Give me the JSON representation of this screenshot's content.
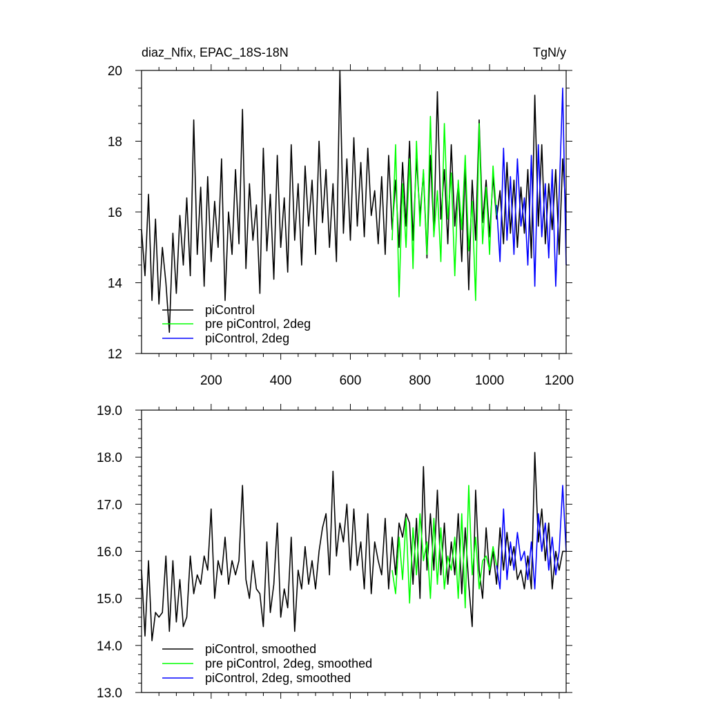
{
  "chart_data": [
    {
      "type": "line",
      "title": "diaz_Nfix, EPAC_18S-18N",
      "units_label": "TgN/y",
      "xlim": [
        0,
        1220
      ],
      "ylim": [
        12,
        20
      ],
      "x_ticks": [
        200,
        400,
        600,
        800,
        1000,
        1200
      ],
      "x_tick_labels": [
        "200",
        "400",
        "600",
        "800",
        "1000",
        "1200"
      ],
      "y_ticks": [
        12,
        14,
        16,
        18,
        20
      ],
      "y_tick_labels": [
        "12",
        "14",
        "16",
        "18",
        "20"
      ],
      "grid": false,
      "legend_placement": "bottom-left",
      "series": [
        {
          "name": "piControl",
          "color": "#000000",
          "x_start": 0,
          "x_step": 10,
          "values": [
            15.5,
            14.2,
            16.5,
            13.5,
            15.8,
            13.4,
            15.0,
            14.0,
            12.6,
            15.4,
            13.7,
            15.9,
            14.5,
            16.4,
            14.2,
            18.6,
            14.8,
            16.7,
            13.9,
            17.0,
            14.6,
            16.3,
            15.0,
            17.5,
            13.5,
            16.0,
            14.8,
            17.2,
            15.1,
            18.9,
            14.4,
            16.8,
            15.2,
            16.2,
            13.7,
            17.8,
            14.9,
            16.5,
            14.1,
            17.6,
            15.0,
            16.4,
            14.3,
            17.9,
            15.2,
            16.8,
            14.5,
            17.3,
            15.6,
            16.9,
            14.8,
            18.0,
            15.7,
            17.2,
            15.0,
            16.8,
            14.6,
            20.0,
            15.4,
            17.5,
            15.2,
            18.1,
            15.6,
            17.4,
            15.3,
            17.8,
            15.9,
            16.6,
            15.1,
            17.0,
            14.8,
            17.6,
            15.5,
            16.9,
            15.0,
            17.4,
            15.6,
            18.0,
            15.2,
            17.5,
            15.9,
            17.1,
            14.7,
            17.6,
            15.4,
            19.4,
            15.8,
            17.2,
            15.1,
            17.9,
            15.6,
            16.8,
            14.6,
            17.3,
            13.8,
            16.9,
            15.2,
            18.6,
            15.7,
            16.9,
            15.3,
            17.0,
            15.8,
            16.6,
            15.1,
            17.4,
            15.4,
            16.9,
            15.0,
            16.7,
            15.4,
            17.2,
            14.7,
            19.3,
            15.6,
            17.9,
            15.1,
            16.8,
            15.5,
            17.2,
            14.8,
            17.5,
            16.0
          ]
        },
        {
          "name": "pre piControl, 2deg",
          "color": "#00ff00",
          "x_start": 720,
          "x_step": 10,
          "values": [
            15.2,
            17.9,
            13.6,
            16.8,
            15.0,
            17.5,
            14.4,
            18.0,
            15.6,
            17.2,
            14.8,
            18.7,
            15.3,
            16.6,
            14.6,
            18.5,
            15.8,
            17.1,
            14.2,
            16.9,
            15.5,
            17.6,
            14.9,
            16.3,
            13.5,
            18.5,
            15.1,
            16.7,
            14.8,
            17.3,
            15.9
          ]
        },
        {
          "name": "piControl, 2deg",
          "color": "#0000ff",
          "x_start": 1020,
          "x_step": 10,
          "values": [
            16.2,
            14.6,
            17.8,
            15.2,
            17.0,
            14.8,
            17.5,
            15.6,
            16.4,
            14.5,
            17.6,
            13.9,
            17.9,
            15.3,
            16.8,
            14.7,
            17.2,
            13.9,
            16.5,
            19.5,
            14.5
          ]
        }
      ]
    },
    {
      "type": "line",
      "xlim": [
        0,
        1220
      ],
      "ylim": [
        13,
        19
      ],
      "y_ticks": [
        13,
        14,
        15,
        16,
        17,
        18,
        19
      ],
      "y_tick_labels": [
        "13.0",
        "14.0",
        "15.0",
        "16.0",
        "17.0",
        "18.0",
        "19.0"
      ],
      "grid": false,
      "legend_placement": "bottom-left",
      "series": [
        {
          "name": "piControl, smoothed",
          "color": "#000000",
          "x_start": 0,
          "x_step": 10,
          "values": [
            15.6,
            14.2,
            15.8,
            14.1,
            14.7,
            14.6,
            14.7,
            15.9,
            14.3,
            15.8,
            14.5,
            15.4,
            14.4,
            14.6,
            15.9,
            15.1,
            15.5,
            15.3,
            15.9,
            15.6,
            16.9,
            15.0,
            15.8,
            15.5,
            16.3,
            15.3,
            15.8,
            15.5,
            15.8,
            17.4,
            15.4,
            15.0,
            15.8,
            15.2,
            15.1,
            14.4,
            16.2,
            14.7,
            15.3,
            16.6,
            14.6,
            15.2,
            14.8,
            16.3,
            14.3,
            15.6,
            15.2,
            16.1,
            15.3,
            15.8,
            15.2,
            16.0,
            16.5,
            16.8,
            15.5,
            17.7,
            15.9,
            16.6,
            16.2,
            17.0,
            15.6,
            16.9,
            15.7,
            16.2,
            15.2,
            16.8,
            15.1,
            16.2,
            15.8,
            15.5,
            16.7,
            15.2,
            16.3,
            15.5,
            16.6,
            16.3,
            16.8,
            16.6,
            15.3,
            16.7,
            15.0,
            17.8,
            15.6,
            16.8,
            15.6,
            17.3,
            15.5,
            16.6,
            15.3,
            16.2,
            15.5,
            16.8,
            15.1,
            16.5,
            15.3,
            14.4,
            17.3,
            15.6,
            15.0,
            16.5,
            15.5,
            16.0,
            15.3,
            16.5,
            15.6,
            16.4,
            15.7,
            16.1,
            15.4,
            15.6,
            15.2,
            15.9,
            15.2,
            18.1,
            16.2,
            16.9,
            15.8,
            16.6,
            15.2,
            16.0,
            15.6,
            16.0,
            16.0
          ]
        },
        {
          "name": "pre piControl, 2deg, smoothed",
          "color": "#00ff00",
          "x_start": 720,
          "x_step": 10,
          "values": [
            15.6,
            15.1,
            16.3,
            15.4,
            16.7,
            14.9,
            16.5,
            15.5,
            16.8,
            15.8,
            16.2,
            15.0,
            16.7,
            15.3,
            16.5,
            15.2,
            15.9,
            15.6,
            16.3,
            15.0,
            16.8,
            14.8,
            17.4,
            15.5,
            16.3,
            15.2,
            15.8,
            15.9,
            15.6,
            16.1,
            15.7
          ]
        },
        {
          "name": "piControl, 2deg, smoothed",
          "color": "#0000ff",
          "x_start": 1020,
          "x_step": 10,
          "values": [
            15.7,
            15.2,
            16.9,
            15.4,
            16.2,
            15.6,
            16.4,
            15.8,
            16.0,
            15.4,
            16.2,
            15.2,
            16.8,
            16.0,
            16.6,
            15.6,
            16.3,
            15.5,
            16.0,
            17.4,
            16.0
          ]
        }
      ]
    }
  ]
}
